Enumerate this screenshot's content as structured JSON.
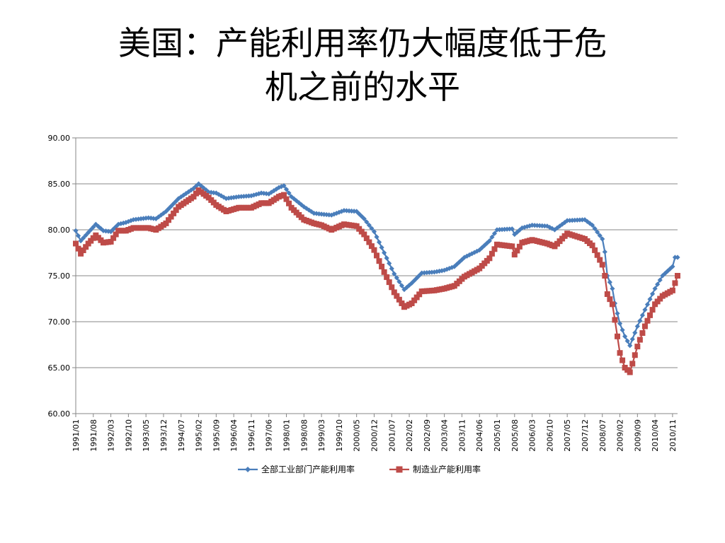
{
  "title": {
    "line1": "美国：产能利用率仍大幅度低于危",
    "line2": "机之前的水平"
  },
  "chart_data": {
    "type": "line",
    "ylim": [
      60,
      90
    ],
    "yticks": [
      "60.00",
      "65.00",
      "70.00",
      "75.00",
      "80.00",
      "85.00",
      "90.00"
    ],
    "xticks": [
      "1991/01",
      "1991/08",
      "1992/03",
      "1992/10",
      "1993/05",
      "1993/12",
      "1994/07",
      "1995/02",
      "1995/09",
      "1996/04",
      "1996/11",
      "1997/06",
      "1998/01",
      "1998/08",
      "1999/03",
      "1999/10",
      "2000/05",
      "2000/12",
      "2001/07",
      "2002/02",
      "2002/09",
      "2003/04",
      "2003/11",
      "2004/06",
      "2005/01",
      "2005/08",
      "2006/03",
      "2006/10",
      "2007/05",
      "2007/12",
      "2008/07",
      "2009/02",
      "2009/09",
      "2010/04",
      "2010/11"
    ],
    "start": "1991/01",
    "end": "2011/01",
    "grid": true,
    "legend": "bottom",
    "series": [
      {
        "name": "全部工业部门产能利用率",
        "color": "#4a7ebb",
        "marker": "diamond",
        "anchors": [
          [
            "1991/01",
            79.9
          ],
          [
            "1991/03",
            78.8
          ],
          [
            "1991/06",
            79.7
          ],
          [
            "1991/09",
            80.6
          ],
          [
            "1991/12",
            79.9
          ],
          [
            "1992/03",
            79.8
          ],
          [
            "1992/06",
            80.6
          ],
          [
            "1992/09",
            80.8
          ],
          [
            "1992/12",
            81.1
          ],
          [
            "1993/06",
            81.3
          ],
          [
            "1993/09",
            81.2
          ],
          [
            "1994/01",
            82.0
          ],
          [
            "1994/06",
            83.4
          ],
          [
            "1994/12",
            84.5
          ],
          [
            "1995/02",
            85.0
          ],
          [
            "1995/06",
            84.1
          ],
          [
            "1995/09",
            84.0
          ],
          [
            "1996/01",
            83.4
          ],
          [
            "1996/06",
            83.6
          ],
          [
            "1996/11",
            83.7
          ],
          [
            "1997/03",
            84.0
          ],
          [
            "1997/06",
            83.9
          ],
          [
            "1997/10",
            84.6
          ],
          [
            "1997/12",
            84.8
          ],
          [
            "1998/03",
            83.6
          ],
          [
            "1998/08",
            82.5
          ],
          [
            "1998/12",
            81.8
          ],
          [
            "1999/03",
            81.7
          ],
          [
            "1999/07",
            81.6
          ],
          [
            "1999/12",
            82.1
          ],
          [
            "2000/05",
            82.0
          ],
          [
            "2000/08",
            81.2
          ],
          [
            "2000/12",
            79.8
          ],
          [
            "2001/04",
            77.5
          ],
          [
            "2001/08",
            75.2
          ],
          [
            "2001/12",
            73.5
          ],
          [
            "2002/03",
            74.2
          ],
          [
            "2002/07",
            75.3
          ],
          [
            "2002/12",
            75.4
          ],
          [
            "2003/04",
            75.6
          ],
          [
            "2003/08",
            76.0
          ],
          [
            "2003/12",
            77.0
          ],
          [
            "2004/06",
            77.8
          ],
          [
            "2004/10",
            78.8
          ],
          [
            "2005/01",
            80.0
          ],
          [
            "2005/07",
            80.1
          ],
          [
            "2005/08",
            79.5
          ],
          [
            "2005/11",
            80.2
          ],
          [
            "2006/03",
            80.5
          ],
          [
            "2006/09",
            80.4
          ],
          [
            "2006/12",
            80.0
          ],
          [
            "2007/05",
            81.0
          ],
          [
            "2007/12",
            81.1
          ],
          [
            "2008/03",
            80.5
          ],
          [
            "2008/07",
            79.0
          ],
          [
            "2008/08",
            77.6
          ],
          [
            "2008/09",
            75.0
          ],
          [
            "2008/11",
            73.6
          ],
          [
            "2008/12",
            72.0
          ],
          [
            "2009/02",
            69.8
          ],
          [
            "2009/04",
            68.4
          ],
          [
            "2009/06",
            67.4
          ],
          [
            "2009/09",
            69.5
          ],
          [
            "2009/12",
            71.3
          ],
          [
            "2010/04",
            73.6
          ],
          [
            "2010/07",
            75.0
          ],
          [
            "2010/11",
            76.0
          ],
          [
            "2010/12",
            77.0
          ],
          [
            "2011/01",
            77.0
          ]
        ]
      },
      {
        "name": "制造业产能利用率",
        "color": "#be4b48",
        "marker": "square",
        "anchors": [
          [
            "1991/01",
            78.5
          ],
          [
            "1991/03",
            77.4
          ],
          [
            "1991/06",
            78.5
          ],
          [
            "1991/09",
            79.4
          ],
          [
            "1991/12",
            78.6
          ],
          [
            "1992/03",
            78.7
          ],
          [
            "1992/06",
            79.9
          ],
          [
            "1992/09",
            79.9
          ],
          [
            "1992/12",
            80.2
          ],
          [
            "1993/06",
            80.2
          ],
          [
            "1993/09",
            80.0
          ],
          [
            "1994/01",
            80.7
          ],
          [
            "1994/06",
            82.5
          ],
          [
            "1994/12",
            83.6
          ],
          [
            "1995/02",
            84.3
          ],
          [
            "1995/06",
            83.5
          ],
          [
            "1995/09",
            82.7
          ],
          [
            "1996/01",
            82.0
          ],
          [
            "1996/06",
            82.4
          ],
          [
            "1996/11",
            82.4
          ],
          [
            "1997/03",
            82.9
          ],
          [
            "1997/06",
            82.9
          ],
          [
            "1997/10",
            83.6
          ],
          [
            "1997/12",
            83.8
          ],
          [
            "1998/03",
            82.4
          ],
          [
            "1998/08",
            81.1
          ],
          [
            "1998/12",
            80.7
          ],
          [
            "1999/03",
            80.5
          ],
          [
            "1999/07",
            80.0
          ],
          [
            "1999/12",
            80.6
          ],
          [
            "2000/05",
            80.4
          ],
          [
            "2000/08",
            79.5
          ],
          [
            "2000/12",
            77.8
          ],
          [
            "2001/04",
            75.4
          ],
          [
            "2001/08",
            73.2
          ],
          [
            "2001/12",
            71.6
          ],
          [
            "2002/03",
            72.0
          ],
          [
            "2002/07",
            73.3
          ],
          [
            "2002/12",
            73.4
          ],
          [
            "2003/04",
            73.6
          ],
          [
            "2003/08",
            73.9
          ],
          [
            "2003/12",
            74.9
          ],
          [
            "2004/06",
            75.8
          ],
          [
            "2004/10",
            76.9
          ],
          [
            "2005/01",
            78.4
          ],
          [
            "2005/07",
            78.2
          ],
          [
            "2005/08",
            77.3
          ],
          [
            "2005/11",
            78.6
          ],
          [
            "2006/03",
            78.9
          ],
          [
            "2006/09",
            78.5
          ],
          [
            "2006/12",
            78.2
          ],
          [
            "2007/05",
            79.6
          ],
          [
            "2007/12",
            79.0
          ],
          [
            "2008/03",
            78.3
          ],
          [
            "2008/07",
            76.2
          ],
          [
            "2008/08",
            75.0
          ],
          [
            "2008/09",
            73.0
          ],
          [
            "2008/11",
            71.9
          ],
          [
            "2008/12",
            70.2
          ],
          [
            "2009/02",
            66.6
          ],
          [
            "2009/04",
            65.0
          ],
          [
            "2009/06",
            64.5
          ],
          [
            "2009/09",
            67.3
          ],
          [
            "2009/12",
            69.5
          ],
          [
            "2010/04",
            71.9
          ],
          [
            "2010/07",
            72.8
          ],
          [
            "2010/11",
            73.4
          ],
          [
            "2010/12",
            74.2
          ],
          [
            "2011/01",
            75.0
          ]
        ]
      }
    ]
  }
}
